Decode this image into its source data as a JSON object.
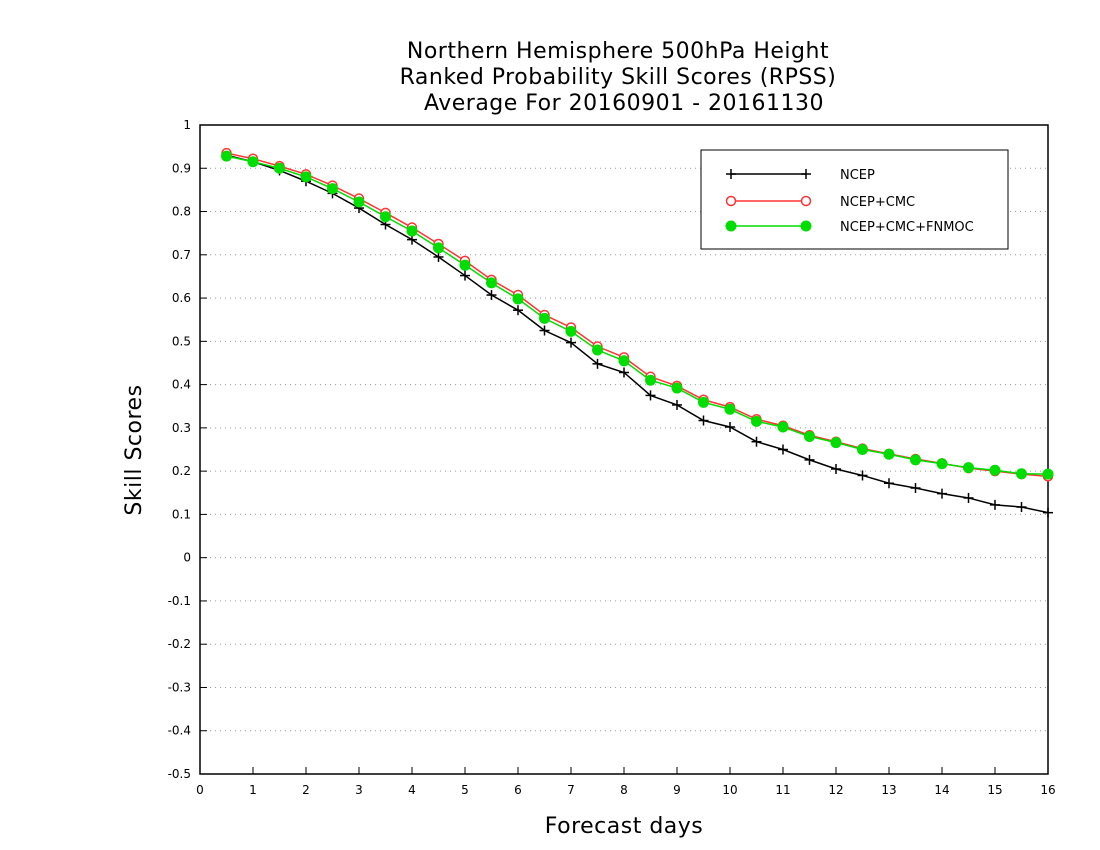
{
  "chart_data": {
    "type": "line",
    "title": [
      "Northern Hemisphere 500hPa Height",
      "Ranked Probability Skill Scores (RPSS)",
      "Average For 20160901 - 20161130"
    ],
    "xlabel": "Forecast days",
    "ylabel": "Skill Scores",
    "xlim": [
      0,
      16
    ],
    "ylim": [
      -0.5,
      1
    ],
    "x_ticks": [
      "0",
      "1",
      "2",
      "3",
      "4",
      "5",
      "6",
      "7",
      "8",
      "9",
      "10",
      "11",
      "12",
      "13",
      "14",
      "15",
      "16"
    ],
    "y_ticks": [
      "-0.5",
      "-0.4",
      "-0.3",
      "-0.2",
      "-0.1",
      "0",
      "0.1",
      "0.2",
      "0.3",
      "0.4",
      "0.5",
      "0.6",
      "0.7",
      "0.8",
      "0.9",
      "1"
    ],
    "grid": "horizontal dotted",
    "legend_position": "top-right",
    "x": [
      0.5,
      1,
      1.5,
      2,
      2.5,
      3,
      3.5,
      4,
      4.5,
      5,
      5.5,
      6,
      6.5,
      7,
      7.5,
      8,
      8.5,
      9,
      9.5,
      10,
      10.5,
      11,
      11.5,
      12,
      12.5,
      13,
      13.5,
      14,
      14.5,
      15,
      15.5,
      16
    ],
    "series": [
      {
        "name": "NCEP",
        "color": "#000000",
        "marker": "plus",
        "values": [
          0.93,
          0.915,
          0.895,
          0.87,
          0.842,
          0.808,
          0.77,
          0.735,
          0.695,
          0.652,
          0.607,
          0.572,
          0.525,
          0.497,
          0.448,
          0.428,
          0.375,
          0.353,
          0.317,
          0.302,
          0.268,
          0.25,
          0.226,
          0.205,
          0.19,
          0.172,
          0.161,
          0.148,
          0.138,
          0.122,
          0.117,
          0.104
        ]
      },
      {
        "name": "NCEP+CMC",
        "color": "#ff3333",
        "marker": "open-circle",
        "values": [
          0.935,
          0.922,
          0.905,
          0.886,
          0.86,
          0.83,
          0.797,
          0.763,
          0.725,
          0.686,
          0.642,
          0.607,
          0.561,
          0.532,
          0.488,
          0.463,
          0.418,
          0.397,
          0.365,
          0.348,
          0.32,
          0.305,
          0.283,
          0.268,
          0.252,
          0.24,
          0.228,
          0.218,
          0.207,
          0.2,
          0.193,
          0.188
        ]
      },
      {
        "name": "NCEP+CMC+FNMOC",
        "color": "#00dd00",
        "marker": "filled-circle",
        "values": [
          0.928,
          0.915,
          0.9,
          0.88,
          0.853,
          0.822,
          0.788,
          0.755,
          0.716,
          0.676,
          0.635,
          0.598,
          0.553,
          0.523,
          0.48,
          0.455,
          0.41,
          0.392,
          0.359,
          0.343,
          0.315,
          0.302,
          0.28,
          0.266,
          0.25,
          0.239,
          0.226,
          0.217,
          0.208,
          0.202,
          0.194,
          0.193
        ]
      }
    ]
  }
}
